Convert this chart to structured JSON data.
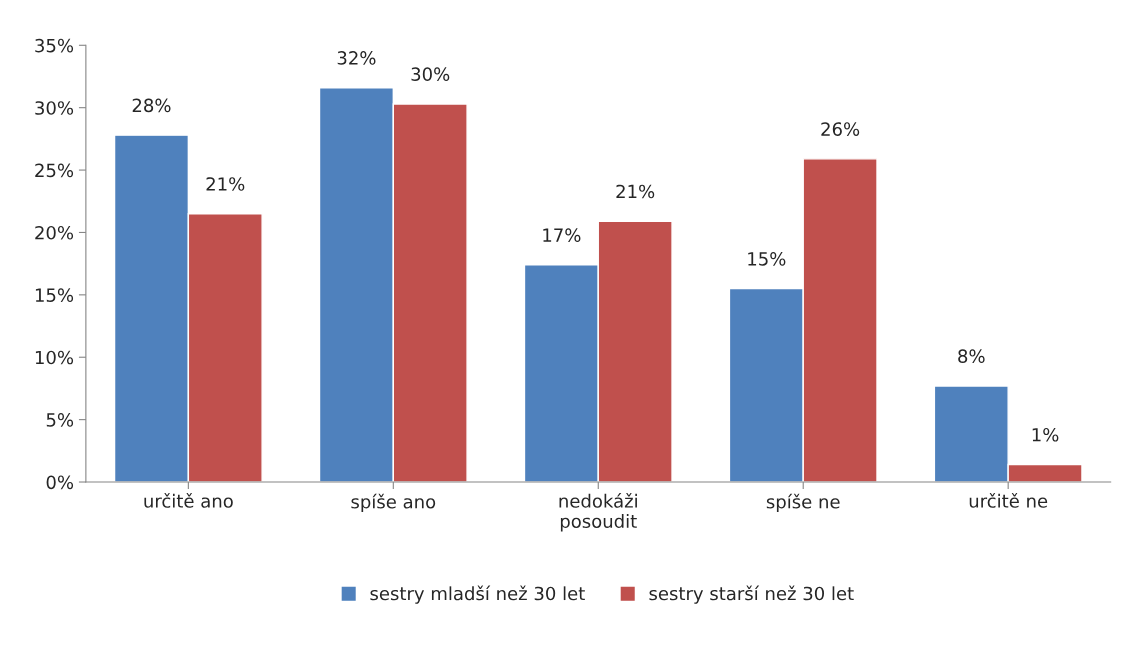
{
  "chart_data": {
    "type": "bar",
    "categories": [
      "určitě ano",
      "spíše ano",
      "nedokáži\nposoudit",
      "spíše ne",
      "určitě ne"
    ],
    "series": [
      {
        "name": "sestry mladší než 30 let",
        "color": "#4f81bd",
        "values": [
          27.8,
          31.6,
          17.4,
          15.5,
          7.7
        ],
        "value_labels": [
          "28%",
          "32%",
          "17%",
          "15%",
          "8%"
        ]
      },
      {
        "name": "sestry starší než 30 let",
        "color": "#c0504d",
        "values": [
          21.5,
          30.3,
          20.9,
          25.9,
          1.4
        ],
        "value_labels": [
          "21%",
          "30%",
          "21%",
          "26%",
          "1%"
        ]
      }
    ],
    "ylim": [
      0,
      35
    ],
    "yticks": [
      {
        "value": 0,
        "label": "0%"
      },
      {
        "value": 5,
        "label": "5%"
      },
      {
        "value": 10,
        "label": "10%"
      },
      {
        "value": 15,
        "label": "15%"
      },
      {
        "value": 20,
        "label": "20%"
      },
      {
        "value": 25,
        "label": "25%"
      },
      {
        "value": 30,
        "label": "30%"
      },
      {
        "value": 35,
        "label": "35%"
      }
    ],
    "grid": false,
    "legend": "bottom"
  }
}
